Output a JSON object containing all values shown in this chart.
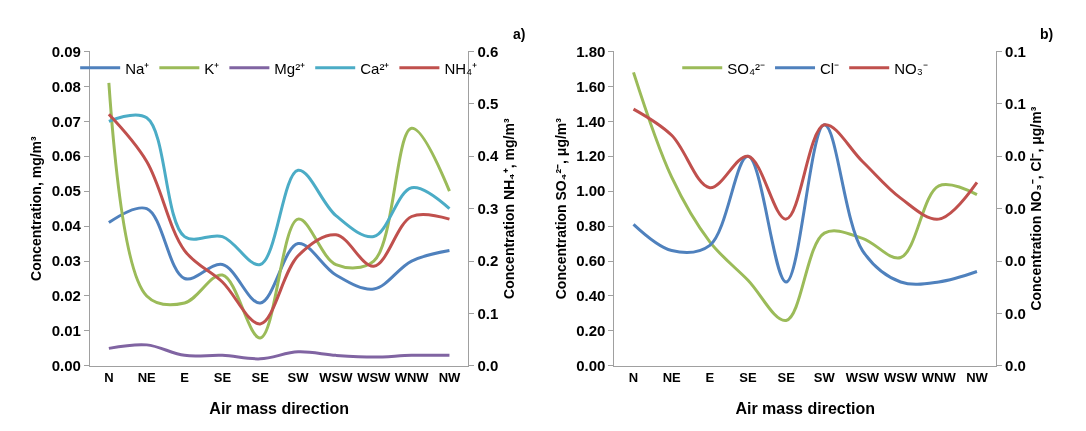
{
  "chart_data": [
    {
      "type": "line",
      "annotations": [
        "a)"
      ],
      "xlabel": "Air mass direction",
      "ylabel": "Concentration, mg/m³",
      "y2label": "Concentration NH₄⁺, mg/m³",
      "categories": [
        "N",
        "NE",
        "E",
        "SE",
        "SE",
        "SW",
        "WSW",
        "WSW",
        "WNW",
        "NW"
      ],
      "series": [
        {
          "name": "Na⁺",
          "color": "#4f81bd",
          "values": [
            0.041,
            0.045,
            0.025,
            0.029,
            0.018,
            0.035,
            0.026,
            0.022,
            0.03,
            0.033
          ]
        },
        {
          "name": "K⁺",
          "color": "#9bbb59",
          "values": [
            0.081,
            0.02,
            0.018,
            0.026,
            0.008,
            0.042,
            0.029,
            0.03,
            0.068,
            0.05
          ]
        },
        {
          "name": "Mg²⁺",
          "color": "#8064a2",
          "values": [
            0.005,
            0.006,
            0.003,
            0.003,
            0.002,
            0.004,
            0.003,
            0.0025,
            0.003,
            0.003
          ]
        },
        {
          "name": "Ca²⁺",
          "color": "#4bacc6",
          "values": [
            0.07,
            0.071,
            0.037,
            0.037,
            0.029,
            0.056,
            0.043,
            0.037,
            0.051,
            0.045
          ]
        },
        {
          "name": "NH₄⁺",
          "color": "#c0504d",
          "axis": "y2",
          "values": [
            0.48,
            0.39,
            0.22,
            0.16,
            0.08,
            0.21,
            0.25,
            0.19,
            0.285,
            0.28
          ]
        }
      ],
      "ylim": [
        0,
        0.09
      ],
      "yticks": [
        {
          "value": 0,
          "label": "0.00"
        },
        0.01,
        0.02,
        0.03,
        0.04,
        0.05,
        0.06,
        0.07,
        0.08,
        0.09
      ],
      "y2lim": [
        0,
        0.6
      ],
      "y2ticks": [
        {
          "value": 0,
          "label": "0.0"
        },
        0.1,
        0.2,
        0.3,
        0.4,
        0.5,
        0.6
      ],
      "legend": "top"
    },
    {
      "type": "line",
      "annotations": [
        "b)"
      ],
      "xlabel": "Air mass direction",
      "ylabel": "Concentration SO₄²⁻, μg/m³",
      "y2label": "Concentration NO₃⁻, Cl⁻, μg/m³",
      "categories": [
        "N",
        "NE",
        "E",
        "SE",
        "SE",
        "SW",
        "WSW",
        "WSW",
        "WNW",
        "NW"
      ],
      "series": [
        {
          "name": "SO₄²⁻",
          "color": "#9bbb59",
          "values": [
            1.68,
            1.08,
            0.71,
            0.49,
            0.26,
            0.76,
            0.73,
            0.62,
            1.03,
            0.98
          ]
        },
        {
          "name": "Cl⁻",
          "color": "#4f81bd",
          "axis": "y2",
          "values": [
            0.027,
            0.022,
            0.023,
            0.04,
            0.016,
            0.046,
            0.022,
            0.016,
            0.016,
            0.018
          ]
        },
        {
          "name": "NO₃⁻",
          "color": "#c0504d",
          "axis": "y2",
          "values": [
            0.049,
            0.044,
            0.034,
            0.04,
            0.028,
            0.046,
            0.039,
            0.032,
            0.028,
            0.035
          ]
        }
      ],
      "ylim": [
        0,
        1.8
      ],
      "yticks": [
        {
          "value": 0,
          "label": "0.00"
        },
        {
          "value": 0.2,
          "label": "0.20"
        },
        {
          "value": 0.4,
          "label": "0.40"
        },
        {
          "value": 0.6,
          "label": "0.60"
        },
        {
          "value": 0.8,
          "label": "0.80"
        },
        {
          "value": 1.0,
          "label": "1.00"
        },
        {
          "value": 1.2,
          "label": "1.20"
        },
        {
          "value": 1.4,
          "label": "1.40"
        },
        {
          "value": 1.6,
          "label": "1.60"
        },
        {
          "value": 1.8,
          "label": "1.80"
        }
      ],
      "y2lim": [
        0,
        0.06
      ],
      "y2ticks": [
        {
          "value": 0,
          "label": "0.0"
        },
        {
          "value": 0.01,
          "label": "0.0"
        },
        {
          "value": 0.02,
          "label": "0.0"
        },
        {
          "value": 0.03,
          "label": "0.0"
        },
        {
          "value": 0.04,
          "label": "0.0"
        },
        {
          "value": 0.05,
          "label": "0.1"
        },
        {
          "value": 0.06,
          "label": "0.1"
        }
      ],
      "legend": "top"
    }
  ]
}
